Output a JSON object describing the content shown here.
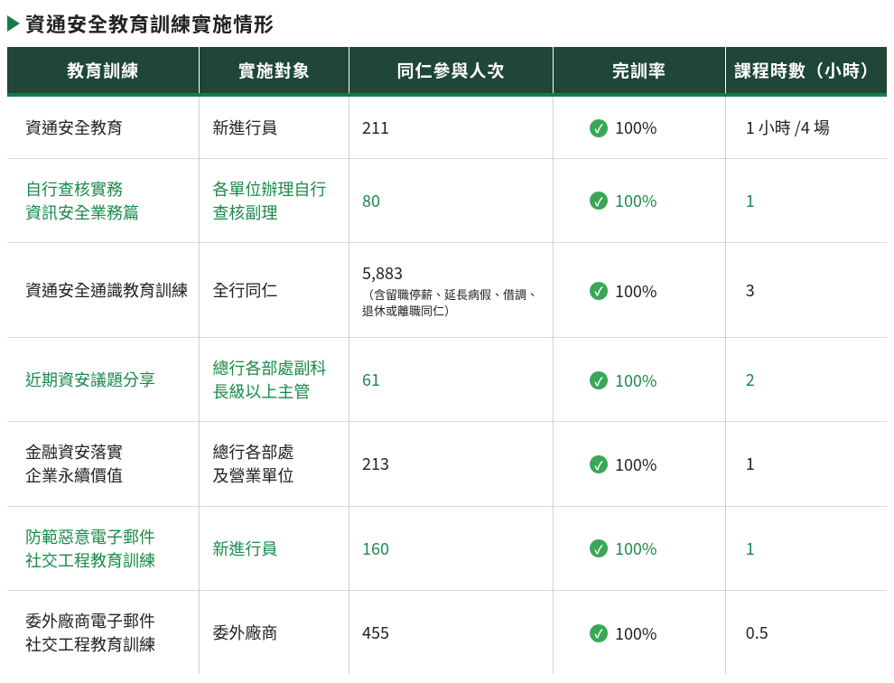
{
  "title": "資通安全教育訓練實施情形",
  "columns": {
    "training": "教育訓練",
    "target": "實施對象",
    "count": "同仁參與人次",
    "rate": "完訓率",
    "hours": "課程時數（小時）"
  },
  "rows": [
    {
      "color": "black",
      "training": "資通安全教育",
      "target": "新進行員",
      "count": "211",
      "count_note": "",
      "rate": "100%",
      "hours": "1 小時 /4 場"
    },
    {
      "color": "green",
      "training": "自行查核實務\n資訊安全業務篇",
      "target": "各單位辦理自行查核副理",
      "count": "80",
      "count_note": "",
      "rate": "100%",
      "hours": "1"
    },
    {
      "color": "black",
      "training": "資通安全通識教育訓練",
      "target": "全行同仁",
      "count": "5,883",
      "count_note": "（含留職停薪、延長病假、借調、退休或離職同仁）",
      "rate": "100%",
      "hours": "3"
    },
    {
      "color": "green",
      "training": "近期資安議題分享",
      "target": "總行各部處副科長級以上主管",
      "count": "61",
      "count_note": "",
      "rate": "100%",
      "hours": "2"
    },
    {
      "color": "black",
      "training": "金融資安落實\n企業永續價值",
      "target": "總行各部處\n及營業單位",
      "count": "213",
      "count_note": "",
      "rate": "100%",
      "hours": "1"
    },
    {
      "color": "green",
      "training": "防範惡意電子郵件\n社交工程教育訓練",
      "target": "新進行員",
      "count": "160",
      "count_note": "",
      "rate": "100%",
      "hours": "1"
    },
    {
      "color": "black",
      "training": "委外廠商電子郵件\n社交工程教育訓練",
      "target": "委外廠商",
      "count": "455",
      "count_note": "",
      "rate": "100%",
      "hours": "0.5"
    }
  ],
  "style": {
    "header_bg": "#1f4636",
    "header_underline": "#1a7a47",
    "arrow_color": "#1a7a47",
    "green_text": "#1a8a4a",
    "black_text": "#222222",
    "check_bg": "#3aa757",
    "border_color": "#d0d0d0"
  }
}
